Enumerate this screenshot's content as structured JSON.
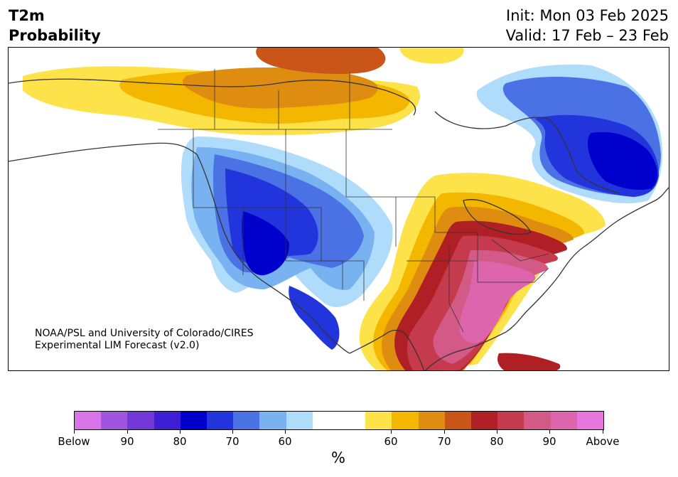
{
  "header": {
    "title_line1": "T2m",
    "title_line2": "Probability",
    "init": "Init: Mon 03 Feb 2025",
    "valid": "Valid: 17 Feb – 23 Feb"
  },
  "credit": {
    "line1": "NOAA/PSL and University of Colorado/CIRES",
    "line2": "Experimental LIM Forecast (v2.0)"
  },
  "colorbar": {
    "colors": [
      "#d873e8",
      "#a155df",
      "#7239d9",
      "#3f1fd6",
      "#0000cc",
      "#2234dc",
      "#4b72e4",
      "#79b2f0",
      "#b0dcfb",
      "#ffffff",
      "#ffffff",
      "#fde24a",
      "#f4b700",
      "#df8d10",
      "#c95518",
      "#b01f23",
      "#c63a4e",
      "#d35a86",
      "#dc65ad",
      "#e676db"
    ],
    "tick_labels": [
      "Below",
      "90",
      "80",
      "70",
      "60",
      "60",
      "70",
      "80",
      "90",
      "Above"
    ],
    "unit": "%"
  },
  "map": {
    "region": "North America",
    "cold_anomaly_regions": [
      "western US",
      "eastern Canada"
    ],
    "warm_anomaly_regions": [
      "southeastern US",
      "northern Canada"
    ]
  }
}
